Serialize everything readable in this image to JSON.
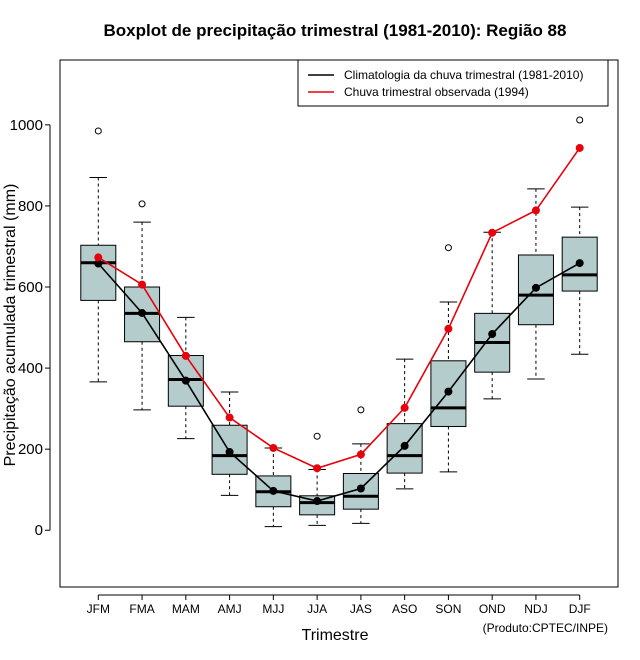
{
  "chart_data": {
    "type": "boxplot",
    "title": "Boxplot de precipitação trimestral (1981-2010): Região 88",
    "xlabel": "Trimestre",
    "ylabel": "Precipitação acumulada trimestral (mm)",
    "credit": "(Produto:CPTEC/INPE)",
    "ylim": [
      -140,
      1160
    ],
    "yticks": [
      0,
      200,
      400,
      600,
      800,
      1000
    ],
    "categories": [
      "JFM",
      "FMA",
      "MAM",
      "AMJ",
      "MJJ",
      "JJA",
      "JAS",
      "ASO",
      "SON",
      "OND",
      "NDJ",
      "DJF"
    ],
    "boxes": [
      {
        "category": "JFM",
        "min": 366,
        "q1": 567,
        "median": 660,
        "q3": 703,
        "max": 870,
        "outliers": [
          985
        ]
      },
      {
        "category": "FMA",
        "min": 297,
        "q1": 465,
        "median": 535,
        "q3": 600,
        "max": 760,
        "outliers": [
          805
        ]
      },
      {
        "category": "MAM",
        "min": 226,
        "q1": 306,
        "median": 372,
        "q3": 431,
        "max": 525,
        "outliers": []
      },
      {
        "category": "AMJ",
        "min": 86,
        "q1": 138,
        "median": 184,
        "q3": 259,
        "max": 341,
        "outliers": []
      },
      {
        "category": "MJJ",
        "min": 9,
        "q1": 58,
        "median": 95,
        "q3": 134,
        "max": 203,
        "outliers": []
      },
      {
        "category": "JJA",
        "min": 12,
        "q1": 38,
        "median": 68,
        "q3": 85,
        "max": 150,
        "outliers": [
          232
        ]
      },
      {
        "category": "JAS",
        "min": 17,
        "q1": 52,
        "median": 84,
        "q3": 140,
        "max": 213,
        "outliers": [
          297
        ]
      },
      {
        "category": "ASO",
        "min": 102,
        "q1": 141,
        "median": 184,
        "q3": 263,
        "max": 422,
        "outliers": []
      },
      {
        "category": "SON",
        "min": 144,
        "q1": 256,
        "median": 302,
        "q3": 418,
        "max": 563,
        "outliers": [
          697
        ]
      },
      {
        "category": "OND",
        "min": 324,
        "q1": 390,
        "median": 463,
        "q3": 535,
        "max": 735,
        "outliers": []
      },
      {
        "category": "NDJ",
        "min": 373,
        "q1": 507,
        "median": 580,
        "q3": 679,
        "max": 842,
        "outliers": []
      },
      {
        "category": "DJF",
        "min": 434,
        "q1": 590,
        "median": 630,
        "q3": 723,
        "max": 797,
        "outliers": [
          1012
        ]
      }
    ],
    "series": [
      {
        "name": "Climatologia da chuva trimestral (1981-2010)",
        "color": "#000000",
        "values": [
          658,
          536,
          369,
          193,
          97,
          72,
          103,
          208,
          342,
          484,
          598,
          659
        ]
      },
      {
        "name": "Chuva trimestral observada (1994)",
        "color": "#e8000b",
        "values": [
          673,
          606,
          430,
          278,
          203,
          153,
          187,
          302,
          497,
          734,
          789,
          943
        ]
      }
    ],
    "legend_position": "top-right",
    "box_fill": "#b4cccc"
  }
}
